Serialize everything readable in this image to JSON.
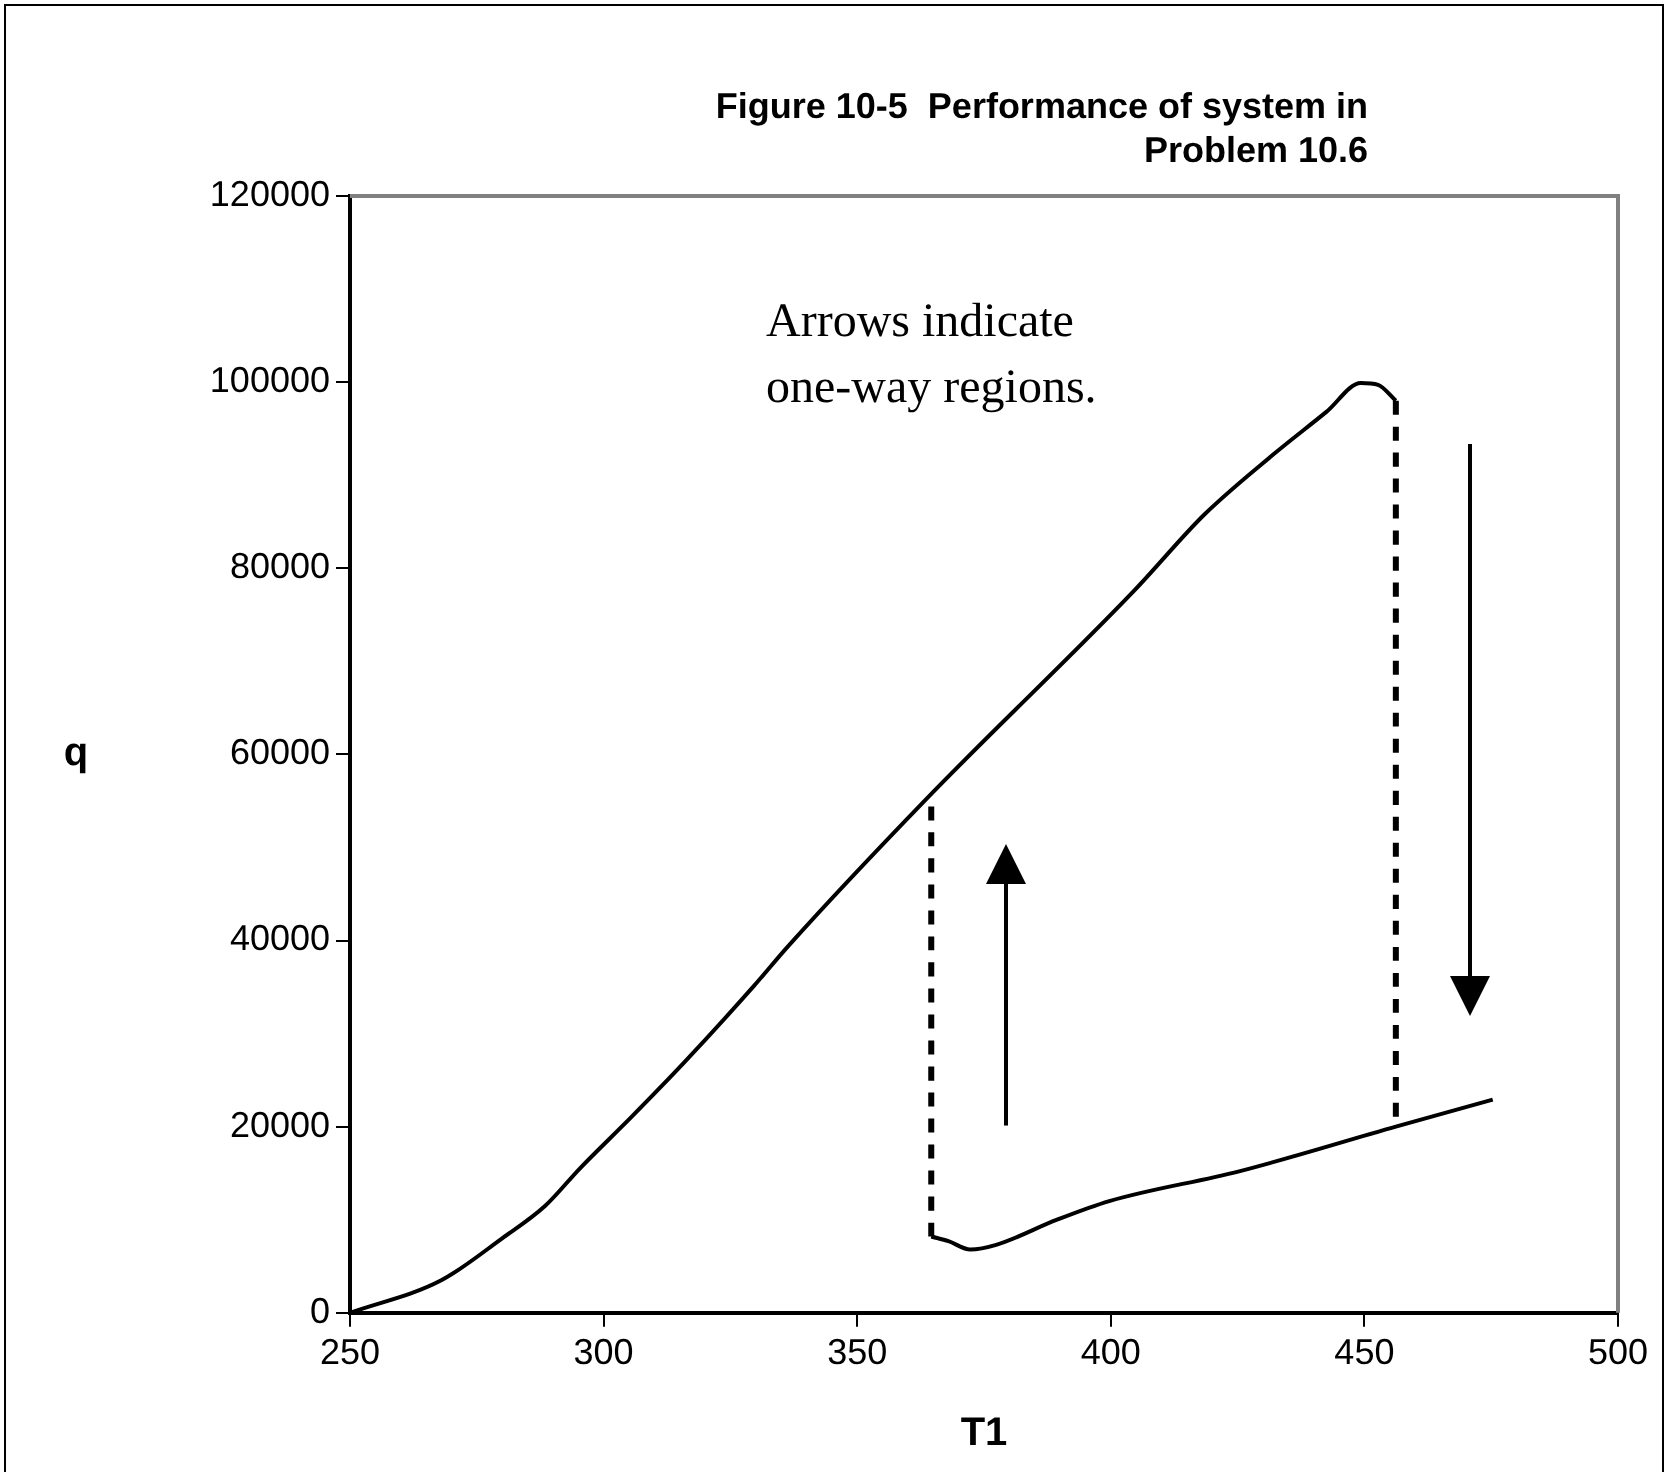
{
  "chart_data": {
    "type": "line",
    "title": "Figure 10-5  Performance of system in Problem 10.6",
    "xlabel": "T1",
    "ylabel": "q",
    "annotations": [
      "Arrows indicate one-way regions."
    ],
    "xlim": [
      250,
      500
    ],
    "xticks": [
      250,
      300,
      350,
      400,
      450,
      500
    ],
    "ylim": [
      0,
      120000
    ],
    "yticks": [
      0,
      20000,
      40000,
      60000,
      80000,
      100000,
      120000
    ],
    "grid": false,
    "legend": false,
    "marker": "none",
    "line_style": "solid",
    "series": [
      {
        "color": "#000000",
        "x": [
          250,
          268,
          280,
          288.5,
          295.3,
          305.6,
          315.9,
          329.6,
          336.4,
          363.8,
          404.8,
          418.5,
          432.2,
          442.5,
          449.3,
          452.7,
          456.2
        ],
        "values": [
          0,
          3500,
          8000,
          11500,
          15500,
          21100,
          26900,
          35100,
          39400,
          55300,
          77700,
          85800,
          92300,
          96800,
          99900,
          99700,
          98000
        ]
      },
      {
        "color": "#000000",
        "x": [
          364.6,
          368,
          372.3,
          377.4,
          389.4,
          399.7,
          425.3,
          456.2,
          475.3
        ],
        "values": [
          8200,
          7700,
          6800,
          7300,
          10000,
          12000,
          15200,
          20000,
          22900
        ]
      },
      {
        "color": "#000000",
        "line_style": "dashed",
        "x": [
          364.6,
          364.6
        ],
        "values": [
          8200,
          55000
        ]
      },
      {
        "color": "#000000",
        "line_style": "dashed",
        "x": [
          456.2,
          456.2
        ],
        "values": [
          98000,
          20000
        ]
      }
    ]
  }
}
